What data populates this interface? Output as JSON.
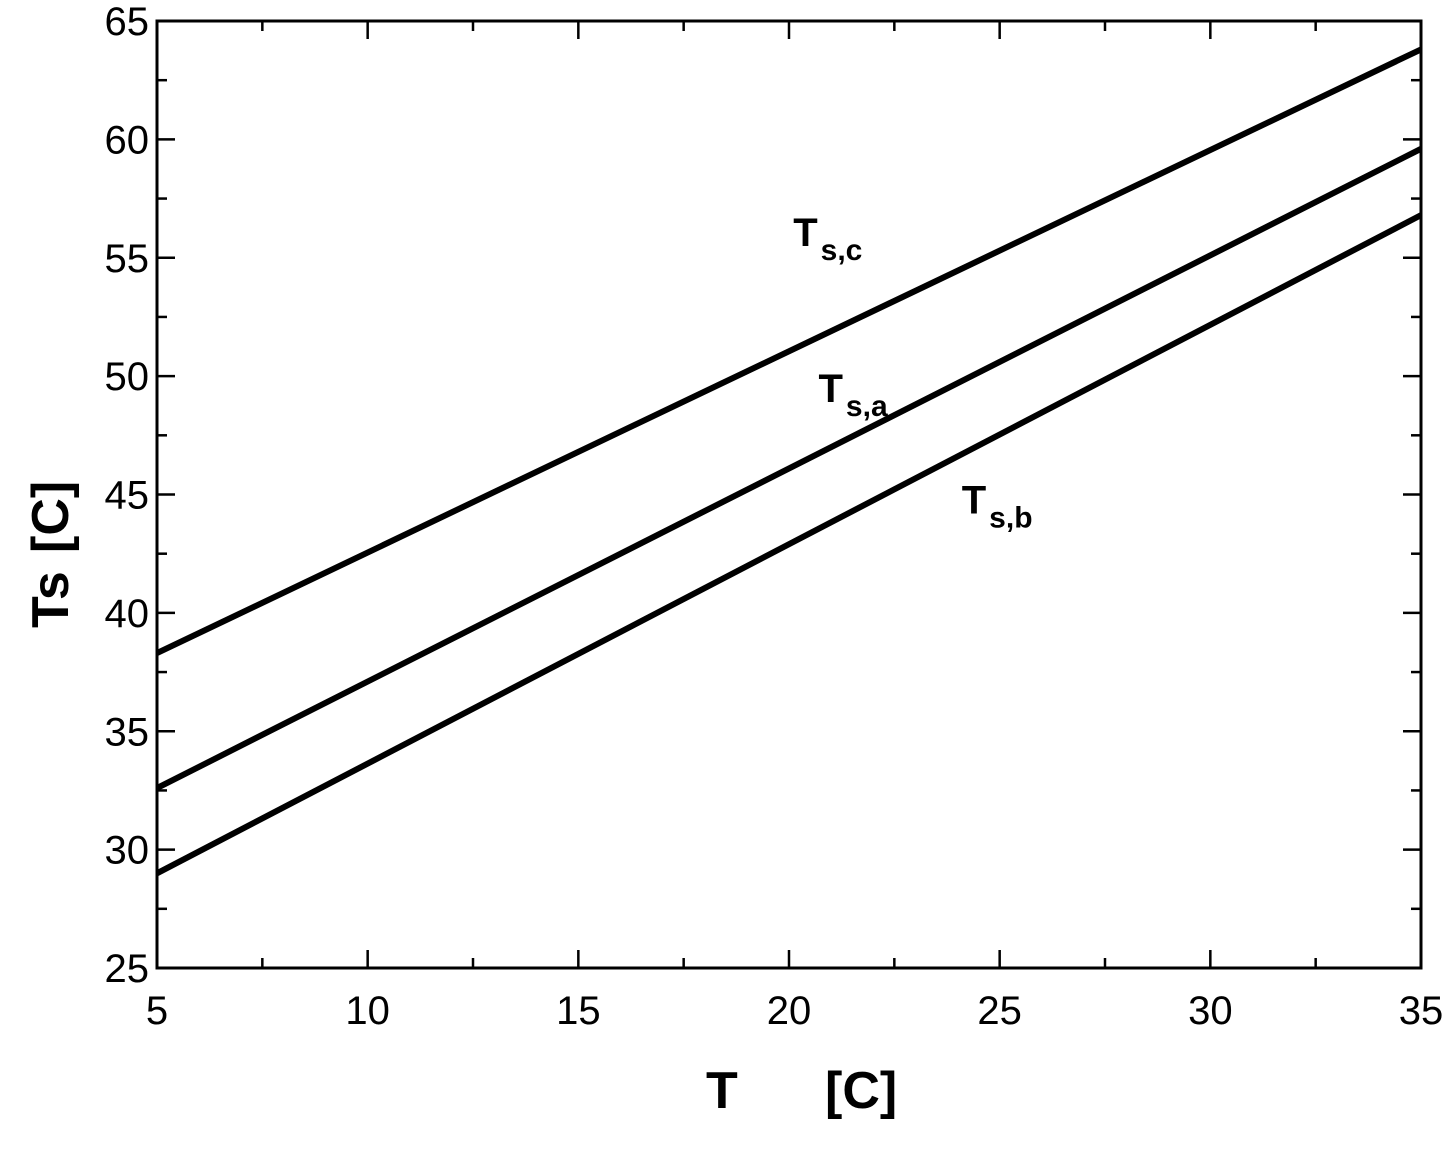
{
  "chart_data": {
    "type": "line",
    "xlabel": "T",
    "xlabel_unit": "[C]",
    "ylabel": "Ts",
    "ylabel_unit": "[C]",
    "xlim": [
      5,
      35
    ],
    "ylim": [
      25,
      65
    ],
    "x_ticks": [
      5,
      10,
      15,
      20,
      25,
      30,
      35
    ],
    "y_ticks": [
      25,
      30,
      35,
      40,
      45,
      50,
      55,
      60,
      65
    ],
    "x_minor_step": 2.5,
    "y_minor_step": 2.5,
    "grid": false,
    "legend": "none",
    "series": [
      {
        "name": "T",
        "sub": "s,c",
        "x": [
          5,
          35
        ],
        "y": [
          38.3,
          63.8
        ]
      },
      {
        "name": "T",
        "sub": "s,a",
        "x": [
          5,
          35
        ],
        "y": [
          32.6,
          59.6
        ]
      },
      {
        "name": "T",
        "sub": "s,b",
        "x": [
          5,
          35
        ],
        "y": [
          29.0,
          56.8
        ]
      }
    ],
    "annotations": [
      {
        "text": "T",
        "sub": "s,c",
        "x": 20.1,
        "y": 55.5
      },
      {
        "text": "T",
        "sub": "s,a",
        "x": 20.7,
        "y": 48.9
      },
      {
        "text": "T",
        "sub": "s,b",
        "x": 24.1,
        "y": 44.2
      }
    ],
    "colors": {
      "line": "#000000",
      "background": "#ffffff"
    }
  }
}
